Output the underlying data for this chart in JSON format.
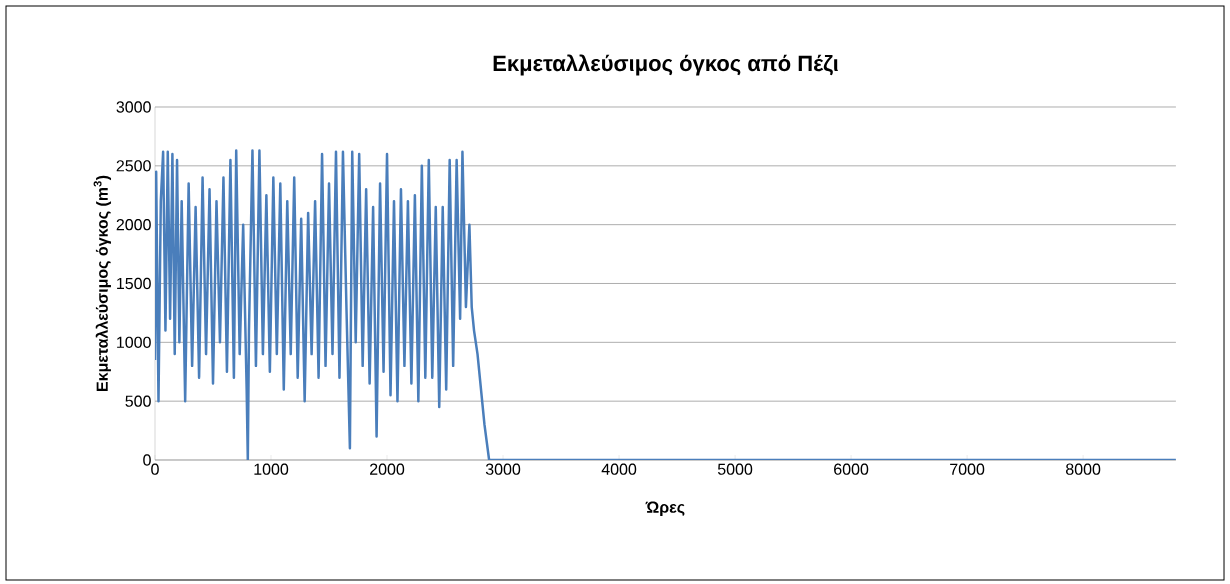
{
  "chart_data": {
    "type": "line",
    "title": "Εκμεταλλεύσιμος όγκος από Πέζι",
    "xlabel": "Ώρες",
    "ylabel": "Εκμεταλλεύσιμος όγκος (m$^{3}$)",
    "xlim": [
      0,
      8800
    ],
    "xticks": [
      0,
      1000,
      2000,
      3000,
      4000,
      5000,
      6000,
      7000,
      8000
    ],
    "ylim": [
      0,
      3000
    ],
    "yticks": [
      0,
      500,
      1000,
      1500,
      2000,
      2500,
      3000
    ],
    "grid": "y",
    "x": [
      0,
      10,
      30,
      50,
      70,
      90,
      110,
      130,
      150,
      170,
      190,
      210,
      230,
      260,
      290,
      320,
      350,
      380,
      410,
      440,
      470,
      500,
      530,
      560,
      590,
      620,
      650,
      680,
      700,
      730,
      760,
      790,
      800,
      810,
      840,
      870,
      900,
      930,
      960,
      990,
      1020,
      1050,
      1080,
      1110,
      1140,
      1170,
      1200,
      1230,
      1260,
      1290,
      1320,
      1350,
      1380,
      1410,
      1440,
      1470,
      1500,
      1530,
      1560,
      1590,
      1620,
      1650,
      1680,
      1700,
      1730,
      1760,
      1790,
      1820,
      1850,
      1880,
      1910,
      1940,
      1970,
      2000,
      2030,
      2060,
      2090,
      2120,
      2150,
      2180,
      2210,
      2240,
      2270,
      2300,
      2330,
      2360,
      2390,
      2420,
      2450,
      2480,
      2510,
      2540,
      2570,
      2600,
      2630,
      2650,
      2680,
      2710,
      2730,
      2750,
      2780,
      2810,
      2840,
      2860,
      2880,
      8800
    ],
    "series": [
      {
        "color": "#4a7ebb",
        "values": [
          850,
          2450,
          500,
          2200,
          2620,
          1100,
          2620,
          1200,
          2600,
          900,
          2550,
          1000,
          2200,
          500,
          2350,
          800,
          2150,
          700,
          2400,
          900,
          2300,
          650,
          2200,
          1000,
          2400,
          750,
          2550,
          700,
          2630,
          900,
          2000,
          600,
          0,
          1100,
          2630,
          800,
          2630,
          900,
          2250,
          750,
          2400,
          900,
          2350,
          600,
          2200,
          900,
          2400,
          700,
          2050,
          500,
          2100,
          900,
          2200,
          700,
          2600,
          800,
          2350,
          900,
          2620,
          700,
          2620,
          1300,
          100,
          2620,
          1000,
          2600,
          800,
          2300,
          650,
          2150,
          200,
          2350,
          750,
          2600,
          550,
          2200,
          500,
          2300,
          800,
          2200,
          650,
          2250,
          500,
          2500,
          700,
          2550,
          700,
          2150,
          450,
          2150,
          600,
          2550,
          800,
          2550,
          1200,
          2620,
          1300,
          2000,
          1300,
          1100,
          900,
          600,
          300,
          150,
          0,
          0
        ]
      }
    ]
  }
}
